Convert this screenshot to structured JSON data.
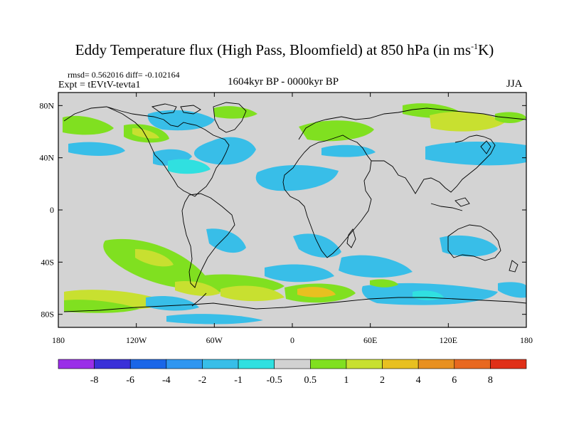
{
  "title": {
    "main": "Eddy Temperature flux (High Pass, Bloomfield) at 850 hPa (in ms",
    "sup": "-1",
    "end": "K)"
  },
  "rmsd_line": "rmsd= 0.562016 diff= -0.102164",
  "expt_line": "Expt = tEVtV-tevta1",
  "period": "1604kyr BP - 0000kyr BP",
  "season": "JJA",
  "map": {
    "lat_ticks": [
      "80N",
      "40N",
      "0",
      "40S",
      "80S"
    ],
    "lon_ticks": [
      "180",
      "120W",
      "60W",
      "0",
      "60E",
      "120E",
      "180"
    ],
    "ocean_color": "#d3d3d3",
    "coast_color": "#000000"
  },
  "colorbar": {
    "colors": [
      "#9a2ee8",
      "#3a30d8",
      "#1a66e8",
      "#2f96f0",
      "#38bee8",
      "#30e0e0",
      "#d2d2d2",
      "#80e020",
      "#c8e030",
      "#e8c020",
      "#e89020",
      "#e86820",
      "#e03018"
    ],
    "labels": [
      "-8",
      "-6",
      "-4",
      "-2",
      "-1",
      "-0.5",
      "0.5",
      "1",
      "2",
      "4",
      "6",
      "8"
    ]
  }
}
